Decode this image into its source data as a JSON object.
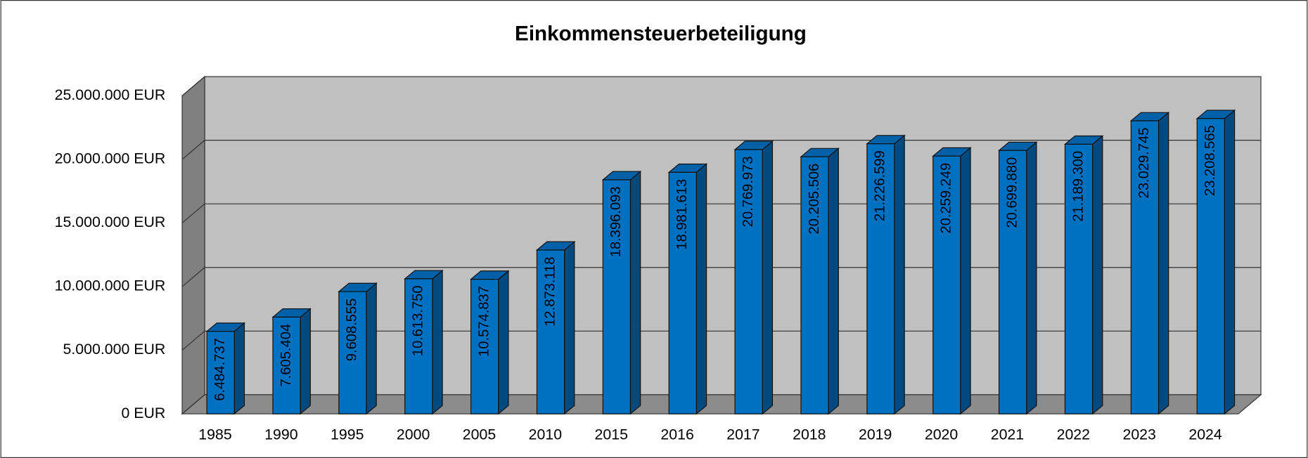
{
  "chart_data": {
    "type": "bar",
    "title": "Einkommensteuerbeteiligung",
    "categories": [
      "1985",
      "1990",
      "1995",
      "2000",
      "2005",
      "2010",
      "2015",
      "2016",
      "2017",
      "2018",
      "2019",
      "2020",
      "2021",
      "2022",
      "2023",
      "2024"
    ],
    "values": [
      6484737,
      7605404,
      9608555,
      10613750,
      10574837,
      12873118,
      18396093,
      18981613,
      20769973,
      20205506,
      21226599,
      20259249,
      20699880,
      21189300,
      23029745,
      23208565
    ],
    "value_labels": [
      "6.484.737",
      "7.605.404",
      "9.608.555",
      "10.613.750",
      "10.574.837",
      "12.873.118",
      "18.396.093",
      "18.981.613",
      "20.769.973",
      "20.205.506",
      "21.226.599",
      "20.259.249",
      "20.699.880",
      "21.189.300",
      "23.029.745",
      "23.208.565"
    ],
    "color": "#0070c0",
    "ylim": [
      0,
      25000000
    ],
    "yticks": [
      {
        "value": 0,
        "label": "0 EUR"
      },
      {
        "value": 5000000,
        "label": "5.000.000 EUR"
      },
      {
        "value": 10000000,
        "label": "10.000.000 EUR"
      },
      {
        "value": 15000000,
        "label": "15.000.000 EUR"
      },
      {
        "value": 20000000,
        "label": "20.000.000 EUR"
      },
      {
        "value": 25000000,
        "label": "25.000.000 EUR"
      }
    ],
    "grid": true
  }
}
